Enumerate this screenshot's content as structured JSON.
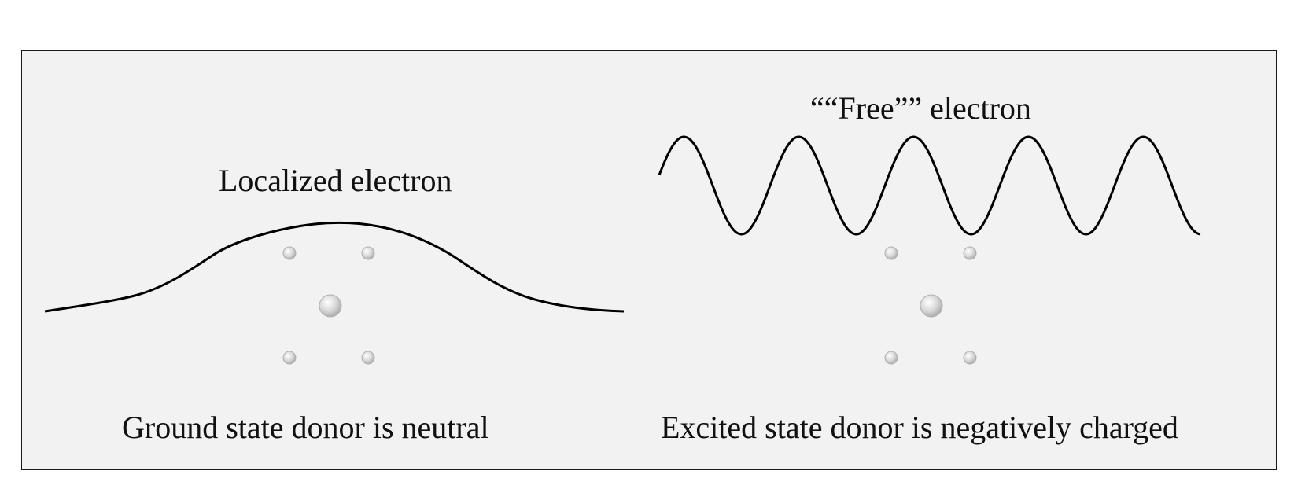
{
  "panels": {
    "left": {
      "wave_label": "Localized electron",
      "caption": "Ground state donor is neutral"
    },
    "right": {
      "wave_label": "““Free”” electron",
      "caption": "Excited state donor is negatively charged"
    }
  },
  "colors": {
    "panel_background": "#f2f2f2",
    "curve": "#000000",
    "atom": "#cccccc",
    "text": "#111111"
  }
}
